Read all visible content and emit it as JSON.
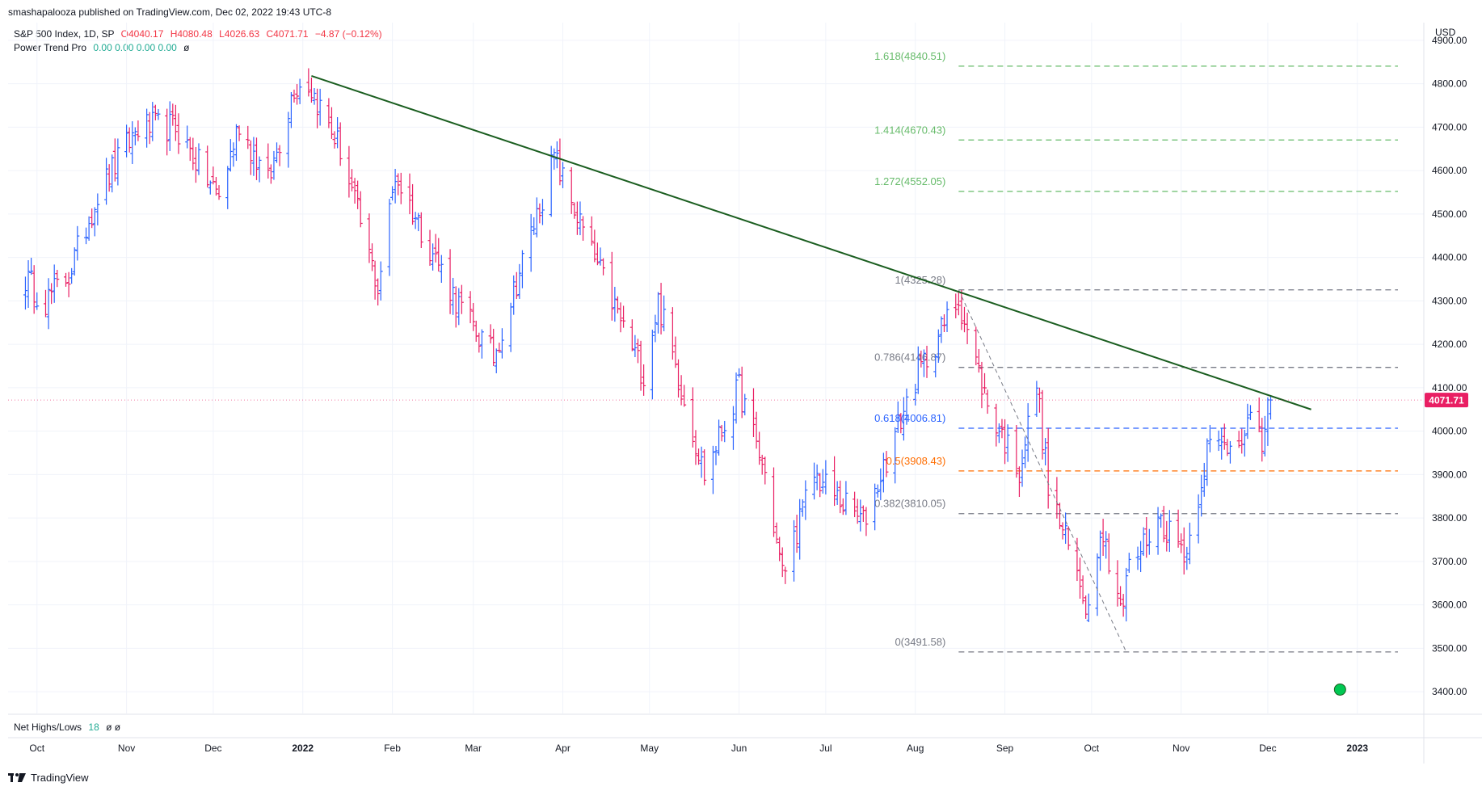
{
  "publisher": "smashapalooza published on TradingView.com, Dec 02, 2022 19:43 UTC-8",
  "legend": {
    "symbol": "S&P 500 Index, 1D, SP",
    "open": "O4040.17",
    "high": "H4080.48",
    "low": "L4026.63",
    "close": "C4071.71",
    "change": "−4.87 (−0.12%)",
    "indicator": "Power Trend Pro",
    "indicator_values": "0.00  0.00  0.00  0.00",
    "indicator_suffix": "ø",
    "sub_indicator": "Net Highs/Lows",
    "sub_value": "18",
    "sub_suffix": "ø  ø"
  },
  "footer": {
    "brand": "TradingView",
    "icon": "tradingview-logo-icon"
  },
  "colors": {
    "up": "#2962ff",
    "down": "#e91e63",
    "trend": "#1b5e20"
  },
  "chart_data": {
    "type": "ohlc",
    "currency": "USD",
    "ylim": [
      3350,
      4950
    ],
    "y_ticks": [
      3400,
      3500,
      3600,
      3700,
      3800,
      3900,
      4000,
      4100,
      4200,
      4300,
      4400,
      4500,
      4600,
      4700,
      4800,
      4900
    ],
    "x_labels": [
      {
        "label": "Oct",
        "date": "2021-10-01"
      },
      {
        "label": "Nov",
        "date": "2021-11-01"
      },
      {
        "label": "Dec",
        "date": "2021-12-01"
      },
      {
        "label": "2022",
        "date": "2022-01-01"
      },
      {
        "label": "Feb",
        "date": "2022-02-01"
      },
      {
        "label": "Mar",
        "date": "2022-03-01"
      },
      {
        "label": "Apr",
        "date": "2022-04-01"
      },
      {
        "label": "May",
        "date": "2022-05-01"
      },
      {
        "label": "Jun",
        "date": "2022-06-01"
      },
      {
        "label": "Jul",
        "date": "2022-07-01"
      },
      {
        "label": "Aug",
        "date": "2022-08-01"
      },
      {
        "label": "Sep",
        "date": "2022-09-01"
      },
      {
        "label": "Oct",
        "date": "2022-10-01"
      },
      {
        "label": "Nov",
        "date": "2022-11-01"
      },
      {
        "label": "Dec",
        "date": "2022-12-01"
      },
      {
        "label": "2023",
        "date": "2023-01-01"
      }
    ],
    "last_price": 4071.71,
    "last_price_label": "4071.71",
    "price_waypoints": [
      [
        "2021-09-27",
        4352
      ],
      [
        "2021-10-04",
        4300
      ],
      [
        "2021-10-12",
        4360
      ],
      [
        "2021-10-22",
        4545
      ],
      [
        "2021-11-05",
        4700
      ],
      [
        "2021-11-18",
        4700
      ],
      [
        "2021-11-30",
        4570
      ],
      [
        "2021-12-03",
        4540
      ],
      [
        "2021-12-10",
        4710
      ],
      [
        "2021-12-20",
        4570
      ],
      [
        "2021-12-29",
        4795
      ],
      [
        "2022-01-03",
        4800
      ],
      [
        "2022-01-14",
        4650
      ],
      [
        "2022-01-27",
        4330
      ],
      [
        "2022-02-02",
        4590
      ],
      [
        "2022-02-24",
        4290
      ],
      [
        "2022-03-08",
        4170
      ],
      [
        "2022-03-29",
        4630
      ],
      [
        "2022-04-11",
        4410
      ],
      [
        "2022-04-29",
        4130
      ],
      [
        "2022-05-04",
        4300
      ],
      [
        "2022-05-20",
        3900
      ],
      [
        "2022-06-01",
        4100
      ],
      [
        "2022-06-10",
        3900
      ],
      [
        "2022-06-16",
        3670
      ],
      [
        "2022-06-27",
        3900
      ],
      [
        "2022-07-06",
        3840
      ],
      [
        "2022-07-14",
        3790
      ],
      [
        "2022-08-01",
        4120
      ],
      [
        "2022-08-16",
        4305
      ],
      [
        "2022-08-26",
        4060
      ],
      [
        "2022-09-06",
        3910
      ],
      [
        "2022-09-12",
        4110
      ],
      [
        "2022-09-16",
        3870
      ],
      [
        "2022-09-30",
        3590
      ],
      [
        "2022-10-04",
        3790
      ],
      [
        "2022-10-12",
        3580
      ],
      [
        "2022-10-13",
        3670
      ],
      [
        "2022-10-24",
        3800
      ],
      [
        "2022-11-03",
        3720
      ],
      [
        "2022-11-10",
        3960
      ],
      [
        "2022-11-18",
        3970
      ],
      [
        "2022-11-25",
        4025
      ],
      [
        "2022-11-29",
        3960
      ],
      [
        "2022-12-01",
        4075
      ],
      [
        "2022-12-02",
        4072
      ]
    ],
    "trendline": {
      "start": [
        "2022-01-04",
        4818
      ],
      "end": [
        "2022-12-16",
        4050
      ]
    },
    "fib_leg": {
      "start": [
        "2022-08-16",
        4325.28
      ],
      "end": [
        "2022-10-13",
        3491.58
      ]
    },
    "fib_levels": [
      {
        "label": "1.618(4840.51)",
        "value": 4840.51,
        "color": "#66bb6a"
      },
      {
        "label": "1.414(4670.43)",
        "value": 4670.43,
        "color": "#66bb6a"
      },
      {
        "label": "1.272(4552.05)",
        "value": 4552.05,
        "color": "#66bb6a"
      },
      {
        "label": "1(4325.28)",
        "value": 4325.28,
        "color": "#787b86"
      },
      {
        "label": "0.786(4146.87)",
        "value": 4146.87,
        "color": "#787b86"
      },
      {
        "label": "0.618(4006.81)",
        "value": 4006.81,
        "color": "#2962ff"
      },
      {
        "label": "0.5(3908.43)",
        "value": 3908.43,
        "color": "#ff6d00"
      },
      {
        "label": "0.382(3810.05)",
        "value": 3810.05,
        "color": "#787b86"
      },
      {
        "label": "0(3491.58)",
        "value": 3491.58,
        "color": "#787b86"
      }
    ],
    "net_highs_lows": 18
  }
}
